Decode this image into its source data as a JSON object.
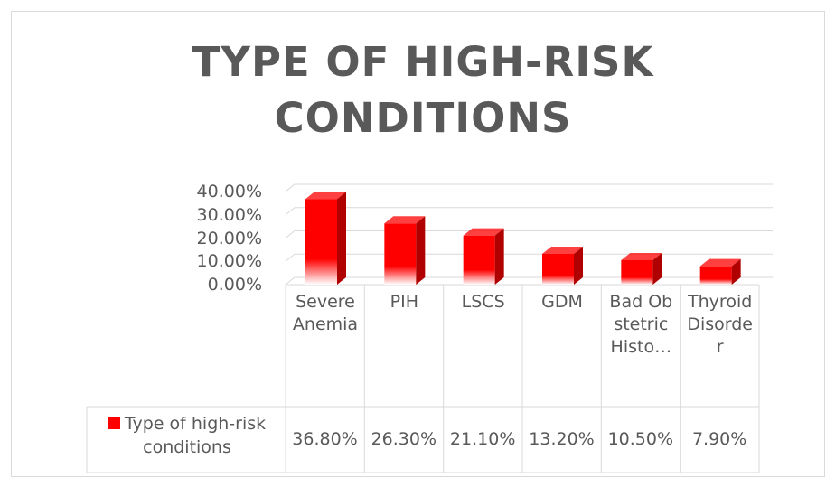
{
  "chart_data": {
    "type": "bar3d",
    "title": "TYPE OF HIGH-RISK CONDITIONS",
    "categories": [
      "Severe Anemia",
      "PIH",
      "LSCS",
      "GDM",
      "Bad Obstetric Histo…",
      "Thyroid Disorder"
    ],
    "series": [
      {
        "name": "Type of high-risk conditions",
        "color": "#ff0000",
        "values": [
          36.8,
          26.3,
          21.1,
          13.2,
          10.5,
          7.9
        ],
        "value_labels": [
          "36.80%",
          "26.30%",
          "21.10%",
          "13.20%",
          "10.50%",
          "7.90%"
        ]
      }
    ],
    "ylim": [
      0,
      40
    ],
    "yticks": [
      {
        "value": 0,
        "label": "0.00%"
      },
      {
        "value": 10,
        "label": "10.00%"
      },
      {
        "value": 20,
        "label": "20.00%"
      },
      {
        "value": 30,
        "label": "30.00%"
      },
      {
        "value": 40,
        "label": "40.00%"
      }
    ],
    "grid": true,
    "legend": "bottom"
  }
}
